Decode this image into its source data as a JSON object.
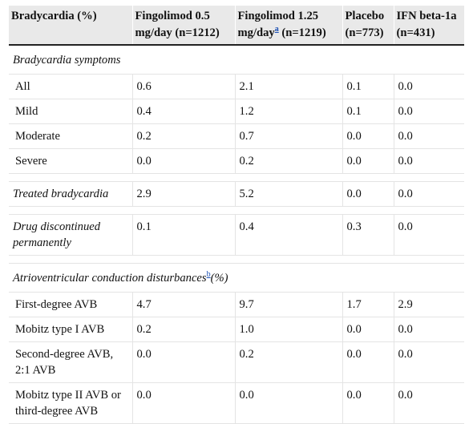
{
  "header": {
    "col1": "Bradycardia (%)",
    "col2": "Fingolimod 0.5 mg/day (n=1212)",
    "col3_pre": "Fingolimod 1.25 mg/day",
    "col3_fn": "a",
    "col3_post": " (n=1219)",
    "col4": "Placebo (n=773)",
    "col5": "IFN beta-1a (n=431)"
  },
  "section1": {
    "title": "Bradycardia symptoms"
  },
  "rows1": [
    {
      "label": "All",
      "v": [
        "0.6",
        "2.1",
        "0.1",
        "0.0"
      ]
    },
    {
      "label": "Mild",
      "v": [
        "0.4",
        "1.2",
        "0.1",
        "0.0"
      ]
    },
    {
      "label": "Moderate",
      "v": [
        "0.2",
        "0.7",
        "0.0",
        "0.0"
      ]
    },
    {
      "label": "Severe",
      "v": [
        "0.0",
        "0.2",
        "0.0",
        "0.0"
      ]
    }
  ],
  "treated": {
    "label": "Treated bradycardia",
    "v": [
      "2.9",
      "5.2",
      "0.0",
      "0.0"
    ]
  },
  "discontinued": {
    "label": "Drug discontinued permanently",
    "v": [
      "0.1",
      "0.4",
      "0.3",
      "0.0"
    ]
  },
  "section2": {
    "title_pre": "Atrioventricular conduction disturbances",
    "fn": "b",
    "title_post": "(%)"
  },
  "rows2": [
    {
      "label": "First-degree AVB",
      "v": [
        "4.7",
        "9.7",
        "1.7",
        "2.9"
      ]
    },
    {
      "label": "Mobitz type I AVB",
      "v": [
        "0.2",
        "1.0",
        "0.0",
        "0.0"
      ]
    },
    {
      "label": "Second-degree AVB, 2:1 AVB",
      "v": [
        "0.0",
        "0.2",
        "0.0",
        "0.0"
      ]
    },
    {
      "label": "Mobitz type II AVB or third-degree AVB",
      "v": [
        "0.0",
        "0.0",
        "0.0",
        "0.0"
      ]
    }
  ]
}
